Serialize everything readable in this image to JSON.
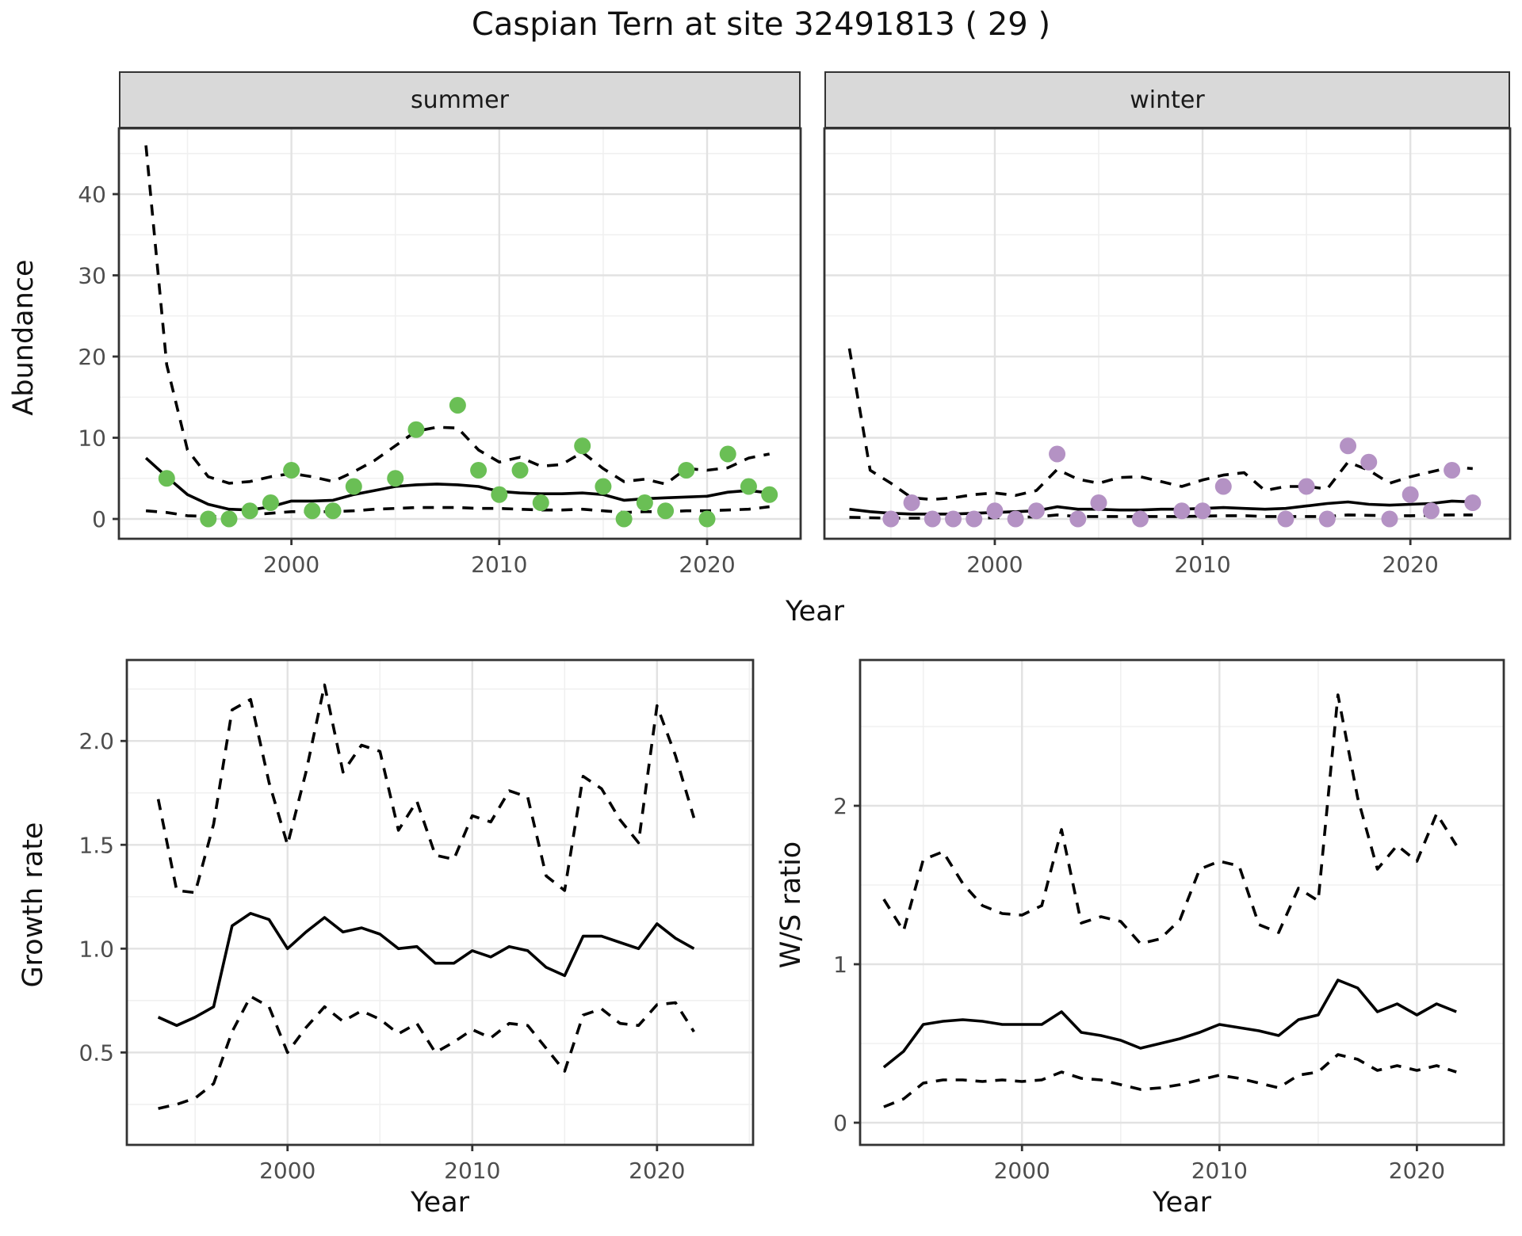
{
  "title": "Caspian Tern at site 32491813 ( 29 )",
  "facets": {
    "summer": "summer",
    "winter": "winter"
  },
  "axis_titles": {
    "abundance": "Abundance",
    "year_top": "Year",
    "growth_rate": "Growth rate",
    "ws_ratio": "W/S ratio",
    "year_bottom_left": "Year",
    "year_bottom_right": "Year"
  },
  "colors": {
    "summer_point": "#6abf55",
    "winter_point": "#b492c4",
    "line": "#000000",
    "grid_major": "#e2e2e2",
    "grid_minor": "#f0f0f0",
    "strip_bg": "#d9d9d9",
    "panel_border": "#333333",
    "tick_label": "#4d4d4d"
  },
  "chart_data": [
    {
      "id": "abundance-summer",
      "type": "line",
      "title": "summer",
      "xlabel": "Year",
      "ylabel": "Abundance",
      "xlim": [
        1991.7,
        2024.5
      ],
      "ylim": [
        -2.44,
        48.1
      ],
      "x_ticks": [
        2000,
        2010,
        2020
      ],
      "x_minor": [
        1995,
        2005,
        2015
      ],
      "y_ticks": [
        0,
        10,
        20,
        30,
        40
      ],
      "y_minor": [
        5,
        15,
        25,
        35,
        45
      ],
      "show_y_tick_labels": true,
      "x": [
        1993,
        1994,
        1995,
        1996,
        1997,
        1998,
        1999,
        2000,
        2001,
        2002,
        2003,
        2004,
        2005,
        2006,
        2007,
        2008,
        2009,
        2010,
        2011,
        2012,
        2013,
        2014,
        2015,
        2016,
        2017,
        2018,
        2019,
        2020,
        2021,
        2022,
        2023
      ],
      "series": [
        {
          "name": "fit",
          "style": "solid",
          "values": [
            7.5,
            5.2,
            3.0,
            1.8,
            1.2,
            1.1,
            1.5,
            2.2,
            2.2,
            2.3,
            3.0,
            3.5,
            4.0,
            4.2,
            4.3,
            4.2,
            4.0,
            3.4,
            3.2,
            3.1,
            3.1,
            3.2,
            3.0,
            2.3,
            2.5,
            2.6,
            2.7,
            2.8,
            3.3,
            3.5,
            3.2
          ]
        },
        {
          "name": "upper_ci",
          "style": "dashed",
          "values": [
            46,
            19,
            8.5,
            5.2,
            4.4,
            4.6,
            5.2,
            5.6,
            5.2,
            4.6,
            5.8,
            7.2,
            9.0,
            10.8,
            11.3,
            11.2,
            8.5,
            7.0,
            7.6,
            6.5,
            6.7,
            8.2,
            6.2,
            4.6,
            4.9,
            4.3,
            6.2,
            6.0,
            6.3,
            7.5,
            8.0
          ]
        },
        {
          "name": "lower_ci",
          "style": "dashed",
          "values": [
            1.0,
            0.8,
            0.4,
            0.3,
            0.3,
            0.5,
            0.7,
            0.9,
            0.9,
            0.9,
            1.0,
            1.2,
            1.3,
            1.4,
            1.4,
            1.4,
            1.3,
            1.3,
            1.2,
            1.1,
            1.1,
            1.2,
            1.0,
            0.8,
            0.9,
            0.9,
            1.0,
            1.0,
            1.1,
            1.2,
            1.5
          ]
        }
      ],
      "points": {
        "color_key": "summer_point",
        "years": [
          1994,
          1996,
          1997,
          1998,
          1999,
          2000,
          2001,
          2002,
          2003,
          2005,
          2006,
          2008,
          2009,
          2010,
          2011,
          2012,
          2014,
          2015,
          2016,
          2017,
          2018,
          2019,
          2020,
          2021,
          2022,
          2023
        ],
        "values": [
          5,
          0,
          0,
          1,
          2,
          6,
          1,
          1,
          4,
          5,
          11,
          14,
          6,
          3,
          6,
          2,
          9,
          4,
          0,
          2,
          1,
          6,
          0,
          8,
          4,
          3
        ]
      }
    },
    {
      "id": "abundance-winter",
      "type": "line",
      "title": "winter",
      "xlabel": "Year",
      "ylabel": "Abundance",
      "xlim": [
        1991.8,
        2024.8
      ],
      "ylim": [
        -2.44,
        48.1
      ],
      "x_ticks": [
        2000,
        2010,
        2020
      ],
      "x_minor": [
        1995,
        2005,
        2015
      ],
      "y_ticks": [
        0,
        10,
        20,
        30,
        40
      ],
      "y_minor": [
        5,
        15,
        25,
        35,
        45
      ],
      "show_y_tick_labels": false,
      "x": [
        1993,
        1994,
        1995,
        1996,
        1997,
        1998,
        1999,
        2000,
        2001,
        2002,
        2003,
        2004,
        2005,
        2006,
        2007,
        2008,
        2009,
        2010,
        2011,
        2012,
        2013,
        2014,
        2015,
        2016,
        2017,
        2018,
        2019,
        2020,
        2021,
        2022,
        2023
      ],
      "series": [
        {
          "name": "fit",
          "style": "solid",
          "values": [
            1.2,
            0.9,
            0.7,
            0.6,
            0.6,
            0.6,
            0.7,
            0.8,
            0.9,
            1.0,
            1.5,
            1.2,
            1.2,
            1.1,
            1.1,
            1.2,
            1.2,
            1.3,
            1.4,
            1.3,
            1.2,
            1.3,
            1.6,
            1.9,
            2.1,
            1.8,
            1.7,
            1.8,
            1.9,
            2.2,
            2.1
          ]
        },
        {
          "name": "upper_ci",
          "style": "dashed",
          "values": [
            21,
            6.0,
            4.4,
            2.6,
            2.4,
            2.6,
            3.0,
            3.2,
            2.9,
            3.5,
            6.1,
            4.9,
            4.4,
            5.1,
            5.2,
            4.6,
            4.0,
            4.8,
            5.4,
            5.7,
            3.5,
            4.0,
            4.0,
            3.7,
            7.0,
            6.0,
            4.4,
            5.2,
            5.8,
            6.4,
            6.2
          ]
        },
        {
          "name": "lower_ci",
          "style": "dashed",
          "values": [
            0.2,
            0.15,
            0.1,
            0.1,
            0.1,
            0.1,
            0.1,
            0.15,
            0.2,
            0.25,
            0.5,
            0.3,
            0.3,
            0.3,
            0.3,
            0.3,
            0.3,
            0.35,
            0.4,
            0.4,
            0.3,
            0.3,
            0.3,
            0.3,
            0.5,
            0.45,
            0.4,
            0.4,
            0.45,
            0.5,
            0.5
          ]
        }
      ],
      "points": {
        "color_key": "winter_point",
        "years": [
          1995,
          1996,
          1997,
          1998,
          1999,
          2000,
          2001,
          2002,
          2003,
          2004,
          2005,
          2007,
          2009,
          2010,
          2011,
          2014,
          2015,
          2016,
          2017,
          2018,
          2019,
          2020,
          2021,
          2022,
          2023
        ],
        "values": [
          0,
          2,
          0,
          0,
          0,
          1,
          0,
          1,
          8,
          0,
          2,
          0,
          1,
          1,
          4,
          0,
          4,
          0,
          9,
          7,
          0,
          3,
          1,
          6,
          2
        ]
      }
    },
    {
      "id": "growth-rate",
      "type": "line",
      "title": "",
      "xlabel": "Year",
      "ylabel": "Growth rate",
      "xlim": [
        1991.3,
        2025.2
      ],
      "ylim": [
        0.055,
        2.39
      ],
      "x_ticks": [
        2000,
        2010,
        2020
      ],
      "x_minor": [
        1995,
        2005,
        2015,
        2025
      ],
      "y_ticks": [
        0.5,
        1.0,
        1.5,
        2.0
      ],
      "y_tick_labels": [
        "0.5",
        "1.0",
        "1.5",
        "2.0"
      ],
      "y_minor": [
        0.25,
        0.75,
        1.25,
        1.75,
        2.25
      ],
      "show_y_tick_labels": true,
      "x": [
        1993,
        1994,
        1995,
        1996,
        1997,
        1998,
        1999,
        2000,
        2001,
        2002,
        2003,
        2004,
        2005,
        2006,
        2007,
        2008,
        2009,
        2010,
        2011,
        2012,
        2013,
        2014,
        2015,
        2016,
        2017,
        2018,
        2019,
        2020,
        2021,
        2022
      ],
      "series": [
        {
          "name": "fit",
          "style": "solid",
          "values": [
            0.67,
            0.63,
            0.67,
            0.72,
            1.11,
            1.17,
            1.14,
            1.0,
            1.08,
            1.15,
            1.08,
            1.1,
            1.07,
            1.0,
            1.01,
            0.93,
            0.93,
            0.99,
            0.96,
            1.01,
            0.99,
            0.91,
            0.87,
            1.06,
            1.06,
            1.03,
            1.0,
            1.12,
            1.05,
            1.0
          ]
        },
        {
          "name": "upper_ci",
          "style": "dashed",
          "values": [
            1.72,
            1.28,
            1.27,
            1.6,
            2.15,
            2.2,
            1.8,
            1.5,
            1.85,
            2.27,
            1.85,
            1.98,
            1.95,
            1.57,
            1.71,
            1.45,
            1.43,
            1.64,
            1.61,
            1.76,
            1.73,
            1.35,
            1.28,
            1.83,
            1.77,
            1.62,
            1.51,
            2.17,
            1.93,
            1.63
          ]
        },
        {
          "name": "lower_ci",
          "style": "dashed",
          "values": [
            0.23,
            0.25,
            0.28,
            0.35,
            0.6,
            0.77,
            0.72,
            0.5,
            0.62,
            0.72,
            0.65,
            0.7,
            0.66,
            0.59,
            0.64,
            0.5,
            0.55,
            0.61,
            0.57,
            0.64,
            0.63,
            0.52,
            0.41,
            0.68,
            0.71,
            0.64,
            0.63,
            0.73,
            0.74,
            0.6
          ]
        }
      ],
      "points": null
    },
    {
      "id": "ws-ratio",
      "type": "line",
      "title": "",
      "xlabel": "Year",
      "ylabel": "W/S ratio",
      "xlim": [
        1991.8,
        2024.4
      ],
      "ylim": [
        -0.14,
        2.92
      ],
      "x_ticks": [
        2000,
        2010,
        2020
      ],
      "x_minor": [
        1995,
        2005,
        2015
      ],
      "y_ticks": [
        0,
        1,
        2
      ],
      "y_minor": [
        0.5,
        1.5,
        2.5
      ],
      "show_y_tick_labels": true,
      "x": [
        1993,
        1994,
        1995,
        1996,
        1997,
        1998,
        1999,
        2000,
        2001,
        2002,
        2003,
        2004,
        2005,
        2006,
        2007,
        2008,
        2009,
        2010,
        2011,
        2012,
        2013,
        2014,
        2015,
        2016,
        2017,
        2018,
        2019,
        2020,
        2021,
        2022
      ],
      "series": [
        {
          "name": "fit",
          "style": "solid",
          "values": [
            0.35,
            0.45,
            0.62,
            0.64,
            0.65,
            0.64,
            0.62,
            0.62,
            0.62,
            0.7,
            0.57,
            0.55,
            0.52,
            0.47,
            0.5,
            0.53,
            0.57,
            0.62,
            0.6,
            0.58,
            0.55,
            0.65,
            0.68,
            0.9,
            0.85,
            0.7,
            0.75,
            0.68,
            0.75,
            0.7
          ]
        },
        {
          "name": "upper_ci",
          "style": "dashed",
          "values": [
            1.41,
            1.21,
            1.66,
            1.71,
            1.51,
            1.37,
            1.32,
            1.31,
            1.37,
            1.85,
            1.26,
            1.3,
            1.27,
            1.13,
            1.16,
            1.28,
            1.6,
            1.65,
            1.62,
            1.25,
            1.2,
            1.48,
            1.4,
            2.7,
            2.05,
            1.6,
            1.75,
            1.65,
            1.95,
            1.75
          ]
        },
        {
          "name": "lower_ci",
          "style": "dashed",
          "values": [
            0.1,
            0.15,
            0.25,
            0.27,
            0.27,
            0.26,
            0.27,
            0.26,
            0.27,
            0.32,
            0.28,
            0.27,
            0.24,
            0.21,
            0.22,
            0.24,
            0.27,
            0.3,
            0.28,
            0.25,
            0.22,
            0.3,
            0.32,
            0.43,
            0.4,
            0.33,
            0.36,
            0.33,
            0.36,
            0.32
          ]
        }
      ],
      "points": null
    }
  ]
}
